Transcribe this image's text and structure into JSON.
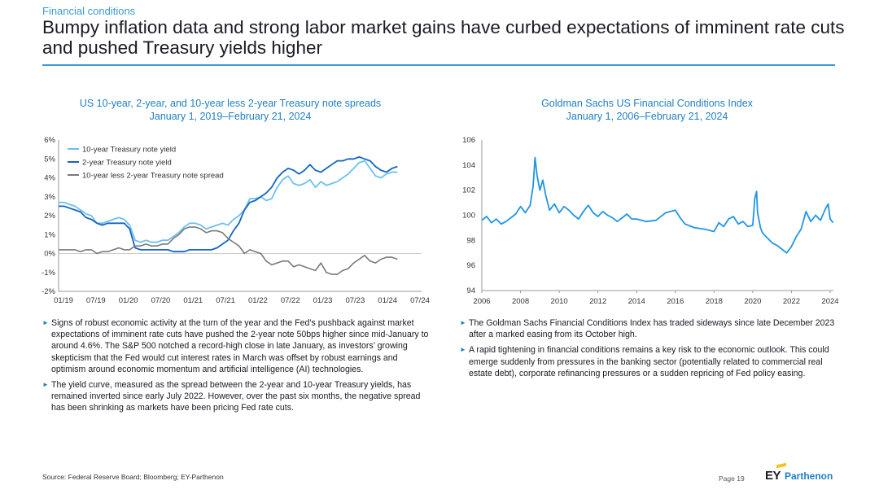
{
  "header": {
    "eyebrow": "Financial conditions",
    "headline": "Bumpy inflation data and strong labor market gains have curbed expectations of imminent rate cuts and pushed Treasury yields higher"
  },
  "colors": {
    "accent": "#3a9ad9",
    "title_blue": "#1f7fc4",
    "series_light": "#6cc0f0",
    "series_dark": "#1565c0",
    "series_gray": "#7a7a7a",
    "gs_line": "#2196e3"
  },
  "left_chart": {
    "title_line1": "US 10-year, 2-year, and 10-year less 2-year Treasury note spreads",
    "title_line2": "January 1, 2019–February 21, 2024"
  },
  "right_chart": {
    "title_line1": "Goldman Sachs US Financial Conditions Index",
    "title_line2": "January 1, 2006–February 21, 2024"
  },
  "chart_data": [
    {
      "type": "line",
      "title": "US 10-year, 2-year, and 10-year less 2-year Treasury note spreads",
      "subtitle": "January 1, 2019–February 21, 2024",
      "x_ticks": [
        "01/19",
        "07/19",
        "01/20",
        "07/20",
        "01/21",
        "07/21",
        "01/22",
        "07/22",
        "01/23",
        "07/23",
        "01/24",
        "07/24"
      ],
      "y_ticks": [
        "6%",
        "5%",
        "4%",
        "3%",
        "2%",
        "1%",
        "0%",
        "-1%",
        "-2%"
      ],
      "ylim": [
        -2,
        6
      ],
      "legend_position": "top-left",
      "grid": false,
      "series": [
        {
          "name": "10-year Treasury note yield",
          "x": [
            0,
            1,
            2,
            3,
            4,
            5,
            6,
            7,
            8,
            9,
            10,
            11,
            12,
            13,
            14,
            15,
            16,
            17,
            18,
            19,
            20,
            21,
            22,
            23,
            24,
            25,
            26,
            27,
            28,
            29,
            30,
            31,
            32,
            33,
            34,
            35,
            36,
            37,
            38,
            39,
            40,
            41,
            42,
            43,
            44,
            45,
            46,
            47,
            48,
            49,
            50,
            51,
            52,
            53,
            54,
            55,
            56,
            57,
            58,
            59,
            60,
            61,
            62
          ],
          "values": [
            2.7,
            2.7,
            2.6,
            2.5,
            2.3,
            2.1,
            2.0,
            1.6,
            1.6,
            1.7,
            1.8,
            1.9,
            1.8,
            1.5,
            0.7,
            0.6,
            0.7,
            0.6,
            0.6,
            0.7,
            0.7,
            0.9,
            1.1,
            1.4,
            1.6,
            1.6,
            1.5,
            1.3,
            1.4,
            1.5,
            1.6,
            1.5,
            1.8,
            2.0,
            2.3,
            2.9,
            2.9,
            3.0,
            2.8,
            2.9,
            3.5,
            3.9,
            4.1,
            3.7,
            3.6,
            3.7,
            3.9,
            3.5,
            3.8,
            3.6,
            3.7,
            3.8,
            4.0,
            4.2,
            4.5,
            4.8,
            4.9,
            4.5,
            4.1,
            4.0,
            4.2,
            4.3,
            4.3
          ]
        },
        {
          "name": "2-year Treasury note yield",
          "x": [
            0,
            1,
            2,
            3,
            4,
            5,
            6,
            7,
            8,
            9,
            10,
            11,
            12,
            13,
            14,
            15,
            16,
            17,
            18,
            19,
            20,
            21,
            22,
            23,
            24,
            25,
            26,
            27,
            28,
            29,
            30,
            31,
            32,
            33,
            34,
            35,
            36,
            37,
            38,
            39,
            40,
            41,
            42,
            43,
            44,
            45,
            46,
            47,
            48,
            49,
            50,
            51,
            52,
            53,
            54,
            55,
            56,
            57,
            58,
            59,
            60,
            61,
            62
          ],
          "values": [
            2.5,
            2.5,
            2.4,
            2.3,
            2.2,
            1.9,
            1.8,
            1.6,
            1.5,
            1.6,
            1.6,
            1.6,
            1.6,
            1.3,
            0.3,
            0.2,
            0.2,
            0.2,
            0.2,
            0.2,
            0.2,
            0.1,
            0.1,
            0.1,
            0.2,
            0.2,
            0.2,
            0.2,
            0.2,
            0.3,
            0.5,
            0.7,
            1.2,
            1.6,
            2.3,
            2.7,
            2.8,
            3.0,
            3.2,
            3.5,
            4.0,
            4.3,
            4.5,
            4.4,
            4.2,
            4.4,
            4.7,
            4.4,
            4.3,
            4.5,
            4.7,
            4.9,
            4.9,
            5.0,
            5.0,
            5.1,
            5.0,
            4.9,
            4.6,
            4.4,
            4.3,
            4.5,
            4.6
          ]
        },
        {
          "name": "10-year less 2-year Treasury note spread",
          "x": [
            0,
            1,
            2,
            3,
            4,
            5,
            6,
            7,
            8,
            9,
            10,
            11,
            12,
            13,
            14,
            15,
            16,
            17,
            18,
            19,
            20,
            21,
            22,
            23,
            24,
            25,
            26,
            27,
            28,
            29,
            30,
            31,
            32,
            33,
            34,
            35,
            36,
            37,
            38,
            39,
            40,
            41,
            42,
            43,
            44,
            45,
            46,
            47,
            48,
            49,
            50,
            51,
            52,
            53,
            54,
            55,
            56,
            57,
            58,
            59,
            60,
            61,
            62
          ],
          "values": [
            0.2,
            0.2,
            0.2,
            0.2,
            0.1,
            0.2,
            0.2,
            0.0,
            0.1,
            0.1,
            0.2,
            0.3,
            0.2,
            0.2,
            0.4,
            0.4,
            0.5,
            0.4,
            0.4,
            0.5,
            0.5,
            0.8,
            1.0,
            1.3,
            1.4,
            1.4,
            1.3,
            1.1,
            1.2,
            1.2,
            1.1,
            0.8,
            0.6,
            0.4,
            0.0,
            0.2,
            0.1,
            0.0,
            -0.4,
            -0.6,
            -0.5,
            -0.4,
            -0.4,
            -0.7,
            -0.6,
            -0.7,
            -0.8,
            -0.9,
            -0.5,
            -1.0,
            -1.1,
            -1.1,
            -0.9,
            -0.8,
            -0.5,
            -0.3,
            -0.1,
            -0.4,
            -0.5,
            -0.3,
            -0.2,
            -0.2,
            -0.3
          ]
        }
      ]
    },
    {
      "type": "line",
      "title": "Goldman Sachs US Financial Conditions Index",
      "subtitle": "January 1, 2006–February 21, 2024",
      "x_ticks": [
        "2006",
        "2008",
        "2010",
        "2012",
        "2014",
        "2016",
        "2018",
        "2020",
        "2022",
        "2024"
      ],
      "xlim": [
        2006,
        2024.15
      ],
      "ylim": [
        94,
        106
      ],
      "y_ticks": [
        "106",
        "104",
        "102",
        "100",
        "98",
        "96",
        "94"
      ],
      "grid": false,
      "series": [
        {
          "x": [
            2006.0,
            2006.25,
            2006.5,
            2006.75,
            2007.0,
            2007.25,
            2007.5,
            2007.75,
            2008.0,
            2008.25,
            2008.5,
            2008.65,
            2008.75,
            2008.85,
            2009.0,
            2009.15,
            2009.3,
            2009.5,
            2009.75,
            2010.0,
            2010.25,
            2010.5,
            2010.75,
            2011.0,
            2011.25,
            2011.5,
            2011.75,
            2012.0,
            2012.25,
            2012.5,
            2012.75,
            2013.0,
            2013.25,
            2013.5,
            2013.75,
            2014.0,
            2014.5,
            2015.0,
            2015.5,
            2015.75,
            2016.0,
            2016.25,
            2016.5,
            2017.0,
            2017.5,
            2018.0,
            2018.25,
            2018.5,
            2018.75,
            2019.0,
            2019.25,
            2019.5,
            2019.75,
            2020.0,
            2020.1,
            2020.2,
            2020.25,
            2020.4,
            2020.5,
            2020.75,
            2021.0,
            2021.25,
            2021.5,
            2021.75,
            2022.0,
            2022.25,
            2022.5,
            2022.75,
            2023.0,
            2023.25,
            2023.5,
            2023.75,
            2023.9,
            2024.0,
            2024.15
          ],
          "values": [
            99.6,
            99.9,
            99.4,
            99.7,
            99.3,
            99.5,
            99.8,
            100.1,
            100.7,
            100.2,
            100.8,
            102.3,
            104.6,
            103.2,
            102.0,
            102.8,
            101.6,
            100.4,
            100.9,
            100.2,
            100.7,
            100.4,
            100.0,
            99.7,
            100.3,
            100.8,
            100.2,
            99.9,
            100.3,
            100.0,
            99.8,
            99.5,
            99.8,
            100.1,
            99.7,
            99.7,
            99.5,
            99.6,
            100.2,
            100.3,
            100.4,
            99.8,
            99.3,
            99.0,
            98.9,
            98.7,
            99.4,
            99.1,
            99.7,
            99.9,
            99.3,
            99.5,
            99.1,
            99.2,
            101.3,
            101.9,
            100.2,
            99.0,
            98.6,
            98.2,
            97.8,
            97.6,
            97.3,
            97.0,
            97.5,
            98.3,
            98.9,
            100.3,
            99.5,
            100.0,
            99.6,
            100.5,
            100.9,
            99.7,
            99.4
          ]
        }
      ]
    }
  ],
  "left_bullets": [
    "Signs of robust economic activity at the turn of the year and the Fed’s pushback against market expectations of imminent rate cuts have pushed the 2-year note 50bps higher since mid-January to around 4.6%. The S&P 500 notched a record-high close in late January, as investors’ growing skepticism that the Fed would cut interest rates in March was offset by robust earnings and optimism around economic momentum and artificial intelligence (AI) technologies.",
    "The yield curve, measured as the spread between the 2-year and 10-year Treasury yields, has remained inverted since early July 2022. However, over the past six months, the negative spread has been shrinking as markets have been pricing Fed rate cuts."
  ],
  "right_bullets": [
    "The Goldman Sachs Financial Conditions Index has traded sideways since late December 2023 after a marked easing from its October high.",
    "A rapid tightening in financial conditions remains a key risk to the economic outlook. This could emerge suddenly from pressures in the banking sector (potentially related to commercial real estate debt), corporate refinancing pressures or a sudden repricing of Fed policy easing."
  ],
  "footer": {
    "source": "Source: Federal Reserve Board; Bloomberg; EY-Parthenon",
    "page": "Page 19",
    "logo_ey": "EY",
    "logo_parthenon": "Parthenon"
  }
}
